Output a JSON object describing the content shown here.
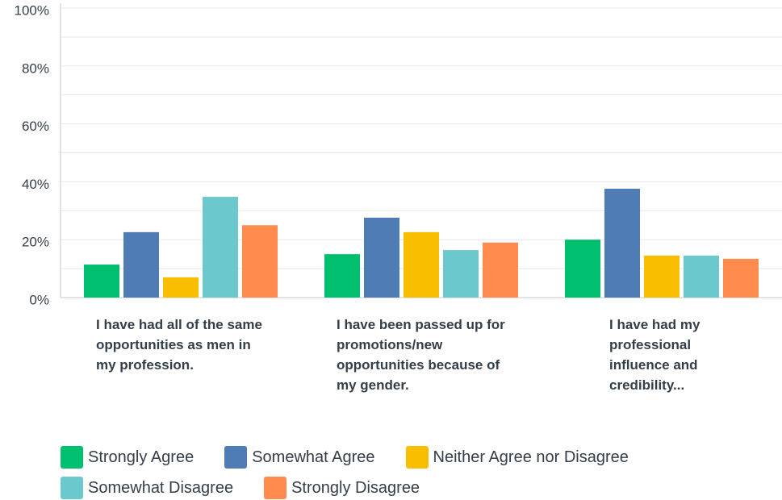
{
  "chart_data": {
    "type": "bar",
    "categories": [
      "I have had all of the same opportunities as men in my profession.",
      "I have been passed up for promotions/new opportunities because of my gender.",
      "I have had my professional influence and credibility..."
    ],
    "series": [
      {
        "name": "Strongly Agree",
        "color": "#00bf6f",
        "values": [
          11.4,
          15.0,
          20.0
        ]
      },
      {
        "name": "Somewhat Agree",
        "color": "#507cb6",
        "values": [
          22.6,
          27.6,
          37.6
        ]
      },
      {
        "name": "Neither Agree nor Disagree",
        "color": "#f9be00",
        "values": [
          7.0,
          22.6,
          14.5
        ]
      },
      {
        "name": "Somewhat Disagree",
        "color": "#6bc8cd",
        "values": [
          34.8,
          16.4,
          14.5
        ]
      },
      {
        "name": "Strongly Disagree",
        "color": "#ff8b4f",
        "values": [
          25.0,
          19.0,
          13.4
        ]
      }
    ],
    "ylim": [
      0,
      100
    ],
    "yticks": [
      {
        "value": 0,
        "label": "0%"
      },
      {
        "value": 20,
        "label": "20%"
      },
      {
        "value": 40,
        "label": "40%"
      },
      {
        "value": 60,
        "label": "60%"
      },
      {
        "value": 80,
        "label": "80%"
      },
      {
        "value": 100,
        "label": "100%"
      }
    ],
    "grid": true
  }
}
